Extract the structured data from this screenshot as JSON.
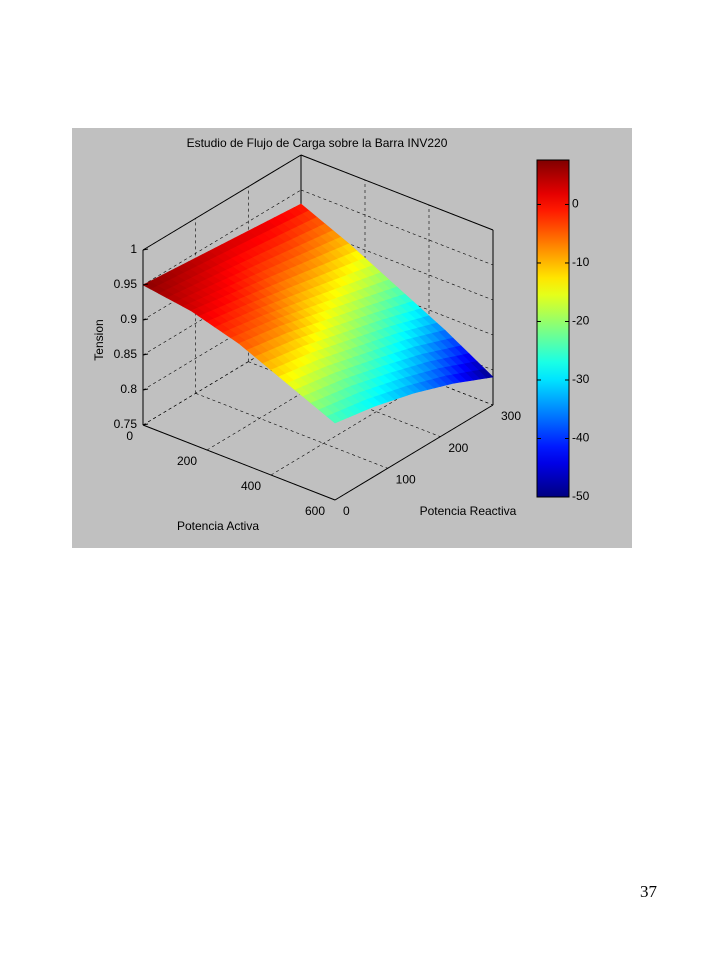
{
  "chart_data": {
    "type": "surface",
    "title": "Estudio de Flujo de Carga sobre la Barra INV220",
    "xlabel": "Potencia Activa",
    "ylabel": "Potencia Reactiva",
    "zlabel": "Tension",
    "x": [
      0,
      150,
      300,
      450,
      600
    ],
    "y": [
      0,
      75,
      150,
      225,
      300
    ],
    "z": [
      [
        0.95,
        0.94,
        0.92,
        0.89,
        0.86
      ],
      [
        0.945,
        0.93,
        0.91,
        0.88,
        0.85
      ],
      [
        0.94,
        0.92,
        0.895,
        0.865,
        0.835
      ],
      [
        0.935,
        0.91,
        0.88,
        0.85,
        0.815
      ],
      [
        0.93,
        0.9,
        0.865,
        0.83,
        0.79
      ]
    ],
    "c": [
      [
        7,
        3,
        -4,
        -14,
        -25
      ],
      [
        5,
        0,
        -7,
        -18,
        -29
      ],
      [
        3,
        -4,
        -13,
        -23,
        -34
      ],
      [
        2,
        -7,
        -18,
        -29,
        -41
      ],
      [
        0,
        -11,
        -23,
        -36,
        -50
      ]
    ],
    "xlim": [
      0,
      600
    ],
    "xticks": [
      0,
      200,
      400,
      600
    ],
    "ylim": [
      0,
      300
    ],
    "yticks": [
      0,
      100,
      200,
      300
    ],
    "zlim": [
      0.75,
      1
    ],
    "zticks": [
      0.75,
      0.8,
      0.85,
      0.9,
      0.95,
      1
    ],
    "grid": true,
    "colormap": "jet",
    "colorbar": {
      "clim": [
        -50,
        7.6
      ],
      "ticks": [
        -50,
        -40,
        -30,
        -20,
        -10,
        0
      ]
    }
  },
  "page_number": "37"
}
